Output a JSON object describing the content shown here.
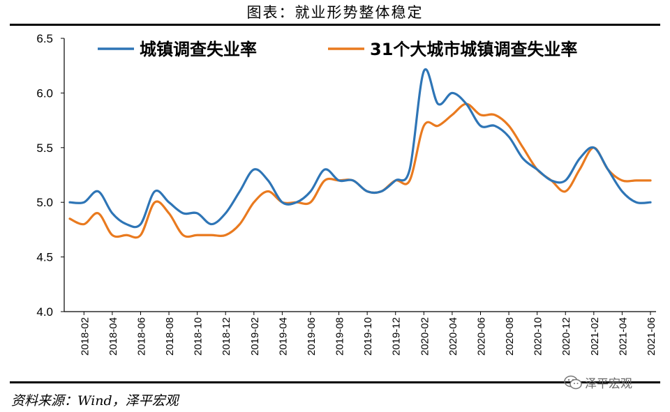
{
  "header": {
    "title": "图表：就业形势整体稳定"
  },
  "footer": {
    "source": "资料来源：Wind，泽平宏观",
    "watermark": "泽平宏观",
    "watermark_icon": "wechat-icon"
  },
  "colors": {
    "series1": "#2E75B6",
    "series2": "#E97A1F"
  },
  "chart_data": {
    "type": "line",
    "title": "",
    "xlabel": "",
    "ylabel": "",
    "ylim": [
      4.0,
      6.5
    ],
    "yticks": [
      "4.0",
      "4.5",
      "5.0",
      "5.5",
      "6.0",
      "6.5"
    ],
    "xticks": [
      "2018-02",
      "2018-04",
      "2018-06",
      "2018-08",
      "2018-10",
      "2018-12",
      "2019-02",
      "2019-04",
      "2019-06",
      "2019-08",
      "2019-10",
      "2019-12",
      "2020-02",
      "2020-04",
      "2020-06",
      "2020-08",
      "2020-10",
      "2020-12",
      "2021-02",
      "2021-04",
      "2021-06"
    ],
    "grid": false,
    "legend": "top",
    "x": [
      "2018-01",
      "2018-02",
      "2018-03",
      "2018-04",
      "2018-05",
      "2018-06",
      "2018-07",
      "2018-08",
      "2018-09",
      "2018-10",
      "2018-11",
      "2018-12",
      "2019-01",
      "2019-02",
      "2019-03",
      "2019-04",
      "2019-05",
      "2019-06",
      "2019-07",
      "2019-08",
      "2019-09",
      "2019-10",
      "2019-11",
      "2019-12",
      "2020-01",
      "2020-02",
      "2020-03",
      "2020-04",
      "2020-05",
      "2020-06",
      "2020-07",
      "2020-08",
      "2020-09",
      "2020-10",
      "2020-11",
      "2020-12",
      "2021-01",
      "2021-02",
      "2021-03",
      "2021-04",
      "2021-05",
      "2021-06"
    ],
    "series": [
      {
        "name": "城镇调查失业率",
        "values": [
          5.0,
          5.0,
          5.1,
          4.9,
          4.8,
          4.8,
          5.1,
          5.0,
          4.9,
          4.9,
          4.8,
          4.9,
          5.1,
          5.3,
          5.2,
          5.0,
          5.0,
          5.1,
          5.3,
          5.2,
          5.2,
          5.1,
          5.1,
          5.2,
          5.3,
          6.2,
          5.9,
          6.0,
          5.9,
          5.7,
          5.7,
          5.6,
          5.4,
          5.3,
          5.2,
          5.2,
          5.4,
          5.5,
          5.3,
          5.1,
          5.0,
          5.0
        ]
      },
      {
        "name": "31个大城市城镇调查失业率",
        "values": [
          4.85,
          4.8,
          4.9,
          4.7,
          4.7,
          4.7,
          5.0,
          4.9,
          4.7,
          4.7,
          4.7,
          4.7,
          4.8,
          5.0,
          5.1,
          5.0,
          5.0,
          5.0,
          5.2,
          5.2,
          5.2,
          5.1,
          5.1,
          5.2,
          5.2,
          5.7,
          5.7,
          5.8,
          5.9,
          5.8,
          5.8,
          5.7,
          5.5,
          5.3,
          5.2,
          5.1,
          5.3,
          5.5,
          5.3,
          5.2,
          5.2,
          5.2
        ]
      }
    ]
  }
}
